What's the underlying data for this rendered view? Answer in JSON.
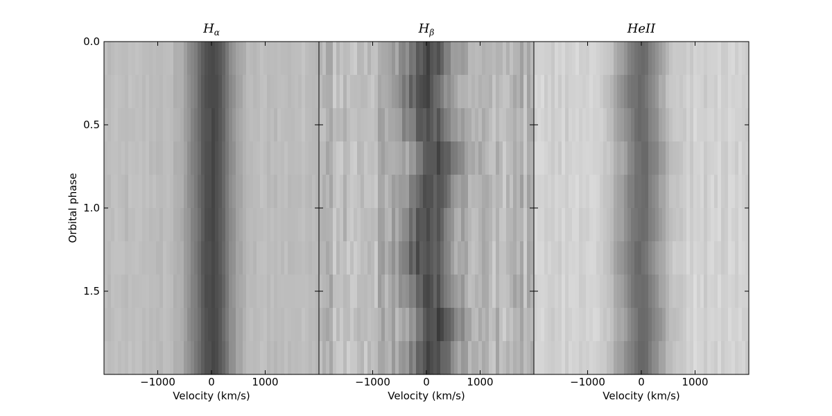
{
  "chart_data": {
    "type": "heatmap",
    "colormap": "grayscale",
    "shared_ylabel": "Orbital phase",
    "y_ticks": [
      0.0,
      0.5,
      1.0,
      1.5
    ],
    "y_tick_labels": [
      "0.0",
      "0.5",
      "1.0",
      "1.5"
    ],
    "ylim": [
      0.0,
      2.0
    ],
    "y_inverted": true,
    "phase_bins": 10,
    "panels": [
      {
        "title_base": "H",
        "title_sub": "α",
        "xlabel": "Velocity (km/s)",
        "xlim": [
          -2000,
          2000
        ],
        "x_ticks": [
          -1000,
          0,
          1000
        ],
        "x_tick_labels": [
          "−1000",
          "0",
          "1000"
        ],
        "profile_center": [
          0,
          0,
          0,
          0,
          0,
          0,
          0,
          0,
          0,
          0
        ],
        "profile_width": 520,
        "profile_depth": 0.45,
        "background_level": 0.74,
        "noise": 0.03
      },
      {
        "title_base": "H",
        "title_sub": "β",
        "xlabel": "Velocity (km/s)",
        "xlim": [
          -2000,
          2000
        ],
        "x_ticks": [
          -1000,
          0,
          1000
        ],
        "x_tick_labels": [
          "−1000",
          "0",
          "1000"
        ],
        "profile_center": [
          0,
          -50,
          50,
          200,
          100,
          0,
          -50,
          50,
          200,
          100
        ],
        "profile_width": 560,
        "profile_depth": 0.4,
        "background_level": 0.72,
        "noise": 0.09
      },
      {
        "title_base": "HeII",
        "title_sub": "",
        "xlabel": "Velocity (km/s)",
        "xlim": [
          -2000,
          2000
        ],
        "x_ticks": [
          -1000,
          0,
          1000
        ],
        "x_tick_labels": [
          "−1000",
          "0",
          "1000"
        ],
        "profile_center": [
          0,
          -50,
          0,
          50,
          0,
          0,
          -50,
          0,
          50,
          0
        ],
        "profile_width": 560,
        "profile_depth": 0.4,
        "background_level": 0.82,
        "noise": 0.04
      }
    ]
  }
}
